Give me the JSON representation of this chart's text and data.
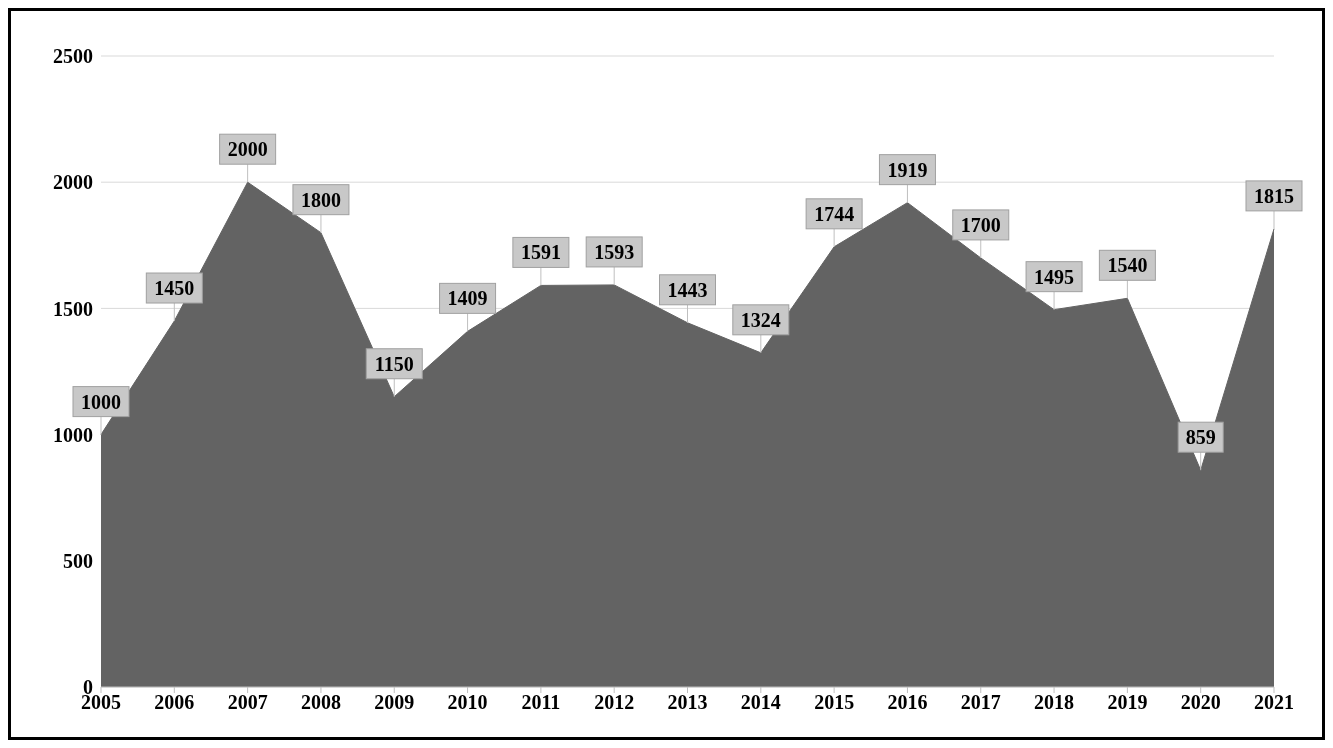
{
  "chart_data": {
    "type": "area",
    "categories": [
      "2005",
      "2006",
      "2007",
      "2008",
      "2009",
      "2010",
      "2011",
      "2012",
      "2013",
      "2014",
      "2015",
      "2016",
      "2017",
      "2018",
      "2019",
      "2020",
      "2021"
    ],
    "values": [
      1000,
      1450,
      2000,
      1800,
      1150,
      1409,
      1591,
      1593,
      1443,
      1324,
      1744,
      1919,
      1700,
      1495,
      1540,
      859,
      1815
    ],
    "color": "#636363",
    "ylim": [
      0,
      2500
    ],
    "yticks": [
      0,
      500,
      1000,
      1500,
      2000,
      2500
    ],
    "grid": "y",
    "data_labels": true
  }
}
